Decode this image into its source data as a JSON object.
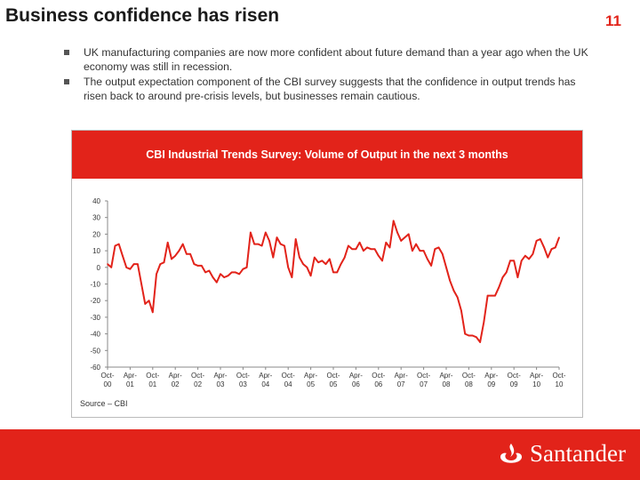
{
  "slide": {
    "title": "Business confidence has risen",
    "number": "11",
    "bullets": [
      "UK manufacturing companies are now more confident about future demand than a year ago when the UK economy was still in recession.",
      "The output expectation component of the CBI survey suggests that the confidence in output trends has risen back to around pre-crisis levels, but businesses remain cautious."
    ],
    "source": "Source – CBI",
    "brand": "Santander"
  },
  "colors": {
    "accent": "#e2231a",
    "line": "#e2231a"
  },
  "chart_data": {
    "type": "line",
    "title": "CBI Industrial Trends Survey: Volume of Output in the next 3 months",
    "xlabel": "",
    "ylabel": "",
    "ylim": [
      -60,
      40
    ],
    "yticks": [
      40,
      30,
      20,
      10,
      0,
      -10,
      -20,
      -30,
      -40,
      -50,
      -60
    ],
    "x_tick_labels": [
      [
        "Oct-",
        "00"
      ],
      [
        "Apr-",
        "01"
      ],
      [
        "Oct-",
        "01"
      ],
      [
        "Apr-",
        "02"
      ],
      [
        "Oct-",
        "02"
      ],
      [
        "Apr-",
        "03"
      ],
      [
        "Oct-",
        "03"
      ],
      [
        "Apr-",
        "04"
      ],
      [
        "Oct-",
        "04"
      ],
      [
        "Apr-",
        "05"
      ],
      [
        "Oct-",
        "05"
      ],
      [
        "Apr-",
        "06"
      ],
      [
        "Oct-",
        "06"
      ],
      [
        "Apr-",
        "07"
      ],
      [
        "Oct-",
        "07"
      ],
      [
        "Apr-",
        "08"
      ],
      [
        "Oct-",
        "08"
      ],
      [
        "Apr-",
        "09"
      ],
      [
        "Oct-",
        "09"
      ],
      [
        "Apr-",
        "10"
      ],
      [
        "Oct-",
        "10"
      ]
    ],
    "series": [
      {
        "name": "Volume of Output in the next 3 months",
        "values": [
          2,
          0,
          13,
          14,
          7,
          0,
          -1,
          2,
          2,
          -10,
          -22,
          -20,
          -27,
          -4,
          2,
          3,
          15,
          5,
          7,
          10,
          14,
          8,
          8,
          2,
          1,
          1,
          -3,
          -2,
          -6,
          -9,
          -4,
          -6,
          -5,
          -3,
          -3,
          -4,
          -1,
          0,
          21,
          14,
          14,
          13,
          21,
          16,
          6,
          18,
          14,
          13,
          0,
          -6,
          17,
          6,
          2,
          0,
          -5,
          6,
          3,
          4,
          2,
          5,
          -3,
          -3,
          2,
          6,
          13,
          11,
          11,
          15,
          10,
          12,
          11,
          11,
          7,
          4,
          15,
          12,
          28,
          21,
          16,
          18,
          20,
          10,
          14,
          10,
          10,
          5,
          1,
          11,
          12,
          8,
          0,
          -8,
          -14,
          -18,
          -26,
          -40,
          -41,
          -41,
          -42,
          -45,
          -33,
          -17,
          -17,
          -17,
          -12,
          -6,
          -3,
          4,
          4,
          -6,
          4,
          7,
          5,
          8,
          16,
          17,
          12,
          6,
          11,
          12,
          18
        ]
      }
    ]
  }
}
